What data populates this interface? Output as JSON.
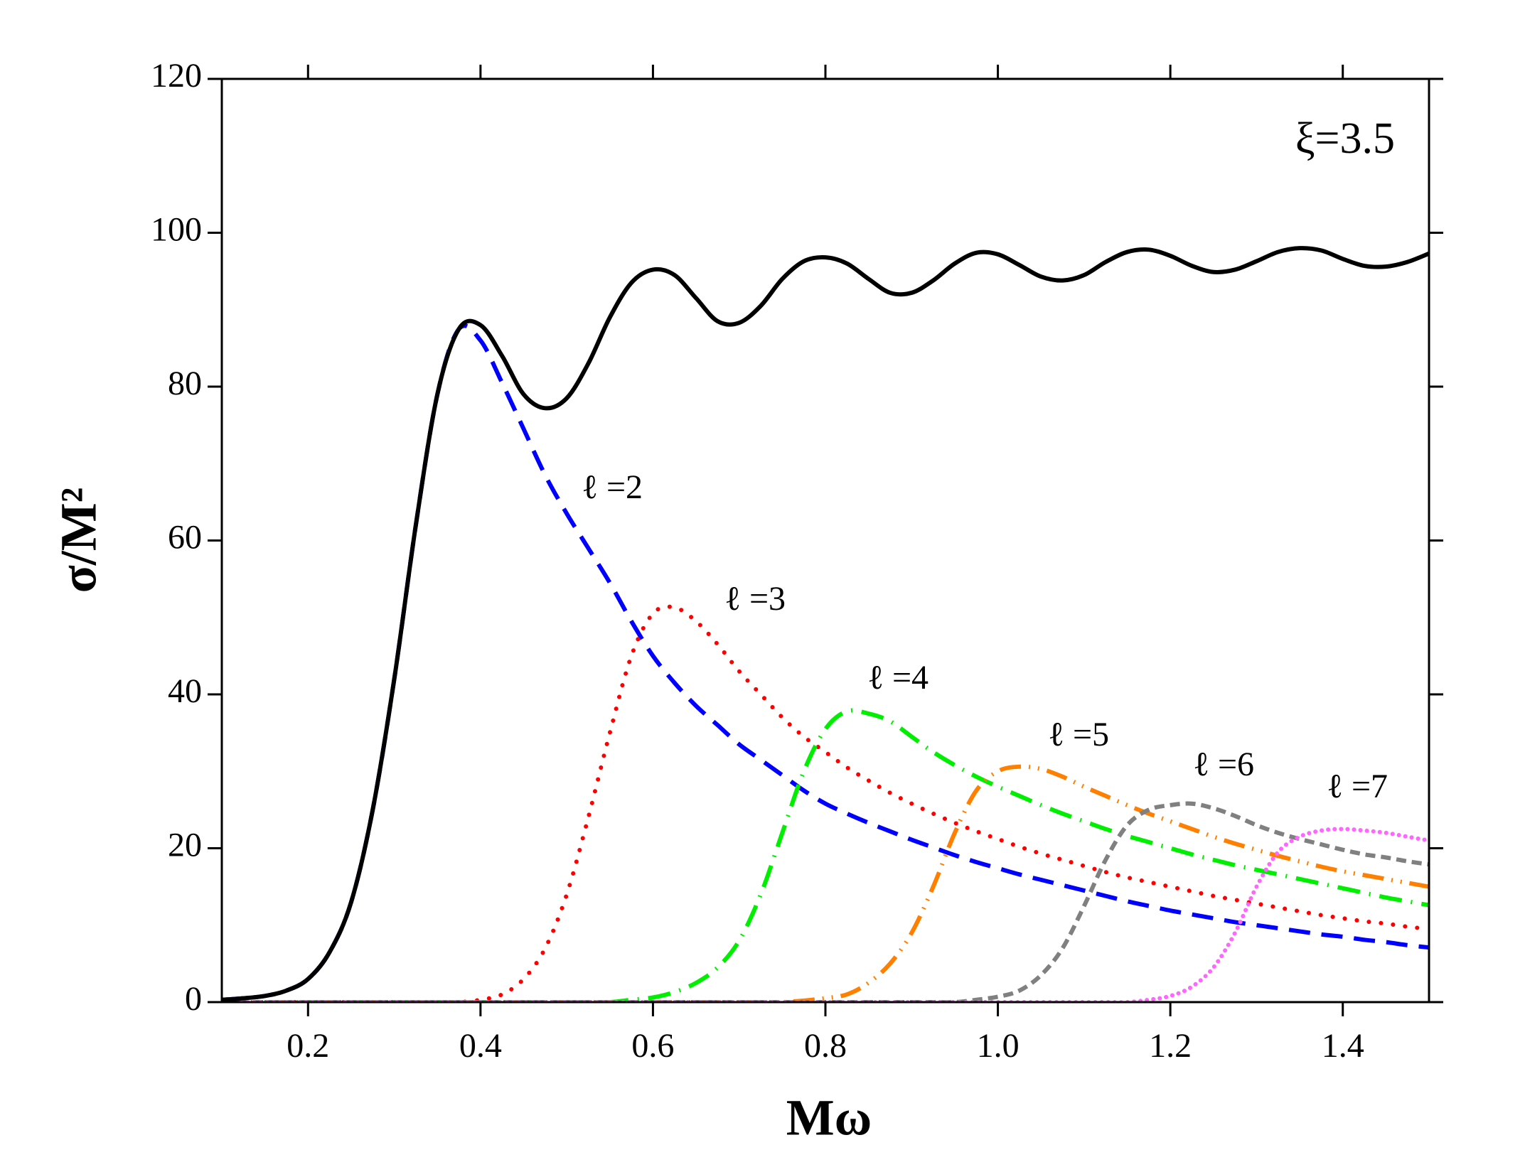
{
  "chart_data": {
    "type": "line",
    "xlabel": "Mω",
    "ylabel": "σ/M²",
    "annotation": "ξ=3.5",
    "x": [
      0.1,
      0.125,
      0.15,
      0.175,
      0.2,
      0.225,
      0.25,
      0.275,
      0.3,
      0.325,
      0.35,
      0.375,
      0.4,
      0.425,
      0.45,
      0.475,
      0.5,
      0.525,
      0.55,
      0.575,
      0.6,
      0.625,
      0.65,
      0.675,
      0.7,
      0.725,
      0.75,
      0.775,
      0.8,
      0.825,
      0.85,
      0.875,
      0.9,
      0.925,
      0.95,
      0.975,
      1.0,
      1.025,
      1.05,
      1.075,
      1.1,
      1.125,
      1.15,
      1.175,
      1.2,
      1.225,
      1.25,
      1.275,
      1.3,
      1.325,
      1.35,
      1.375,
      1.4,
      1.425,
      1.45,
      1.475,
      1.5
    ],
    "series": [
      {
        "color": "#000000",
        "dash": "solid",
        "values": [
          0.3,
          0.5,
          0.8,
          1.5,
          3,
          6.5,
          13,
          25,
          42,
          62,
          79,
          87.5,
          88,
          84,
          79,
          77.2,
          78.5,
          83,
          89,
          93.5,
          95.2,
          94.5,
          91.5,
          88.5,
          88.3,
          90.5,
          94,
          96.3,
          96.8,
          96,
          94,
          92.2,
          92.2,
          93.8,
          96,
          97.4,
          97.2,
          95.8,
          94.3,
          93.8,
          94.5,
          96.2,
          97.5,
          97.8,
          97,
          95.7,
          94.9,
          95.2,
          96.3,
          97.5,
          98,
          97.7,
          96.6,
          95.7,
          95.6,
          96.2,
          97.3
        ]
      },
      {
        "name": "ℓ =2",
        "color": "#0000ff",
        "dash": "dash",
        "values": [
          0.3,
          0.5,
          0.8,
          1.5,
          3,
          6.5,
          13,
          25,
          42,
          62,
          79,
          87.5,
          86,
          80.5,
          74.5,
          68.5,
          63.5,
          59,
          54.5,
          49.5,
          45,
          41.5,
          38.5,
          36,
          33.5,
          31.5,
          29.5,
          27.5,
          25.8,
          24.5,
          23.3,
          22.2,
          21.1,
          20.1,
          19.1,
          18.2,
          17.4,
          16.6,
          15.9,
          15.2,
          14.5,
          13.8,
          13.1,
          12.5,
          11.9,
          11.4,
          10.9,
          10.4,
          10,
          9.6,
          9.2,
          8.8,
          8.5,
          8.1,
          7.8,
          7.4,
          7.1
        ]
      },
      {
        "name": "ℓ =3",
        "color": "#ff0000",
        "dash": "dot",
        "values": [
          0,
          0,
          0,
          0,
          0,
          0,
          0,
          0,
          0,
          0,
          0,
          0,
          0.3,
          1,
          3,
          7,
          14,
          24,
          35,
          45,
          50.5,
          51.3,
          49.5,
          46.5,
          43,
          40,
          37,
          34.5,
          32.5,
          30.5,
          28.8,
          27.2,
          25.8,
          24.5,
          23.3,
          22.2,
          21.2,
          20.2,
          19.3,
          18.5,
          17.7,
          16.9,
          16.2,
          15.6,
          15,
          14.4,
          13.8,
          13.3,
          12.8,
          12.3,
          11.8,
          11.3,
          10.9,
          10.5,
          10.2,
          9.8,
          9.5
        ]
      },
      {
        "name": "ℓ =4",
        "color": "#00ee00",
        "dash": "dashdot",
        "values": [
          0,
          0,
          0,
          0,
          0,
          0,
          0,
          0,
          0,
          0,
          0,
          0,
          0,
          0,
          0,
          0,
          0,
          0,
          0,
          0.3,
          0.6,
          1.3,
          2.5,
          4.5,
          8,
          14,
          22,
          30,
          35.5,
          37.8,
          37.5,
          36.5,
          34.5,
          32.5,
          30.8,
          29.3,
          28,
          26.8,
          25.6,
          24.5,
          23.5,
          22.5,
          21.6,
          20.8,
          20,
          19.2,
          18.5,
          17.8,
          17.2,
          16.6,
          16,
          15.4,
          14.8,
          14.2,
          13.6,
          13.1,
          12.6
        ]
      },
      {
        "name": "ℓ =5",
        "color": "#ff8000",
        "dash": "dashdotdot",
        "values": [
          0,
          0,
          0,
          0,
          0,
          0,
          0,
          0,
          0,
          0,
          0,
          0,
          0,
          0,
          0,
          0,
          0,
          0,
          0,
          0,
          0,
          0,
          0,
          0,
          0,
          0,
          0,
          0.2,
          0.5,
          1,
          2.5,
          5,
          9,
          15,
          22,
          27.5,
          30,
          30.6,
          30.3,
          29.3,
          28,
          26.8,
          25.6,
          24.5,
          23.5,
          22.5,
          21.5,
          20.6,
          19.8,
          19,
          18.3,
          17.6,
          17,
          16.5,
          16,
          15.5,
          15
        ]
      },
      {
        "name": "ℓ =6",
        "color": "#808080",
        "dash": "shortdash",
        "values": [
          0,
          0,
          0,
          0,
          0,
          0,
          0,
          0,
          0,
          0,
          0,
          0,
          0,
          0,
          0,
          0,
          0,
          0,
          0,
          0,
          0,
          0,
          0,
          0,
          0,
          0,
          0,
          0,
          0,
          0,
          0,
          0,
          0,
          0,
          0,
          0.3,
          0.7,
          1.5,
          3.5,
          7,
          12.5,
          18.5,
          23,
          25,
          25.6,
          25.8,
          25.2,
          24.2,
          23,
          22,
          21.2,
          20.5,
          19.8,
          19.2,
          18.8,
          18.3,
          17.9
        ]
      },
      {
        "name": "ℓ =7",
        "color": "#ff66ff",
        "dash": "densedot",
        "values": [
          0,
          0,
          0,
          0,
          0,
          0,
          0,
          0,
          0,
          0,
          0,
          0,
          0,
          0,
          0,
          0,
          0,
          0,
          0,
          0,
          0,
          0,
          0,
          0,
          0,
          0,
          0,
          0,
          0,
          0,
          0,
          0,
          0,
          0,
          0,
          0,
          0,
          0,
          0,
          0,
          0,
          0,
          0,
          0.3,
          0.8,
          2,
          4.5,
          9,
          15,
          19.5,
          21.5,
          22.3,
          22.5,
          22.3,
          22,
          21.5,
          21
        ]
      }
    ],
    "xlim": [
      0.1,
      1.5
    ],
    "xticks": [
      0.2,
      0.4,
      0.6,
      0.8,
      {
        "value": 1,
        "label": "1.0"
      },
      1.2,
      1.4
    ],
    "ylim": [
      0,
      120
    ],
    "yticks": [
      0,
      20,
      40,
      60,
      80,
      100,
      120
    ]
  }
}
